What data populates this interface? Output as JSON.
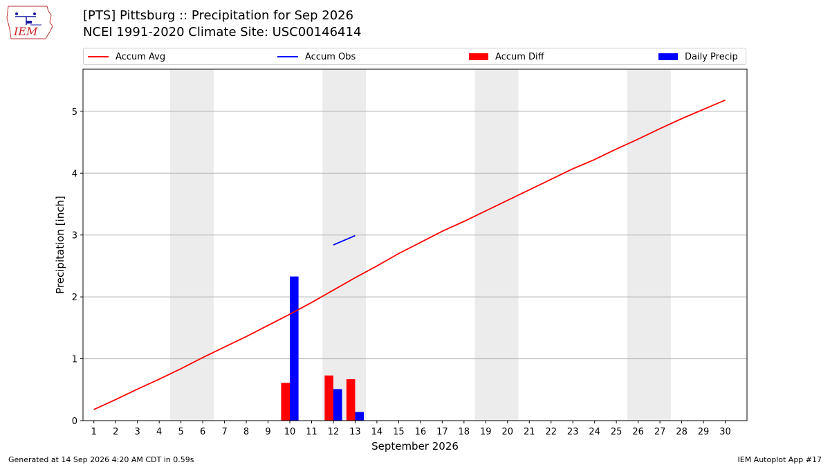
{
  "header": {
    "title_line1": "[PTS] Pittsburg :: Precipitation for Sep 2026",
    "title_line2": "NCEI 1991-2020 Climate Site: USC00146414",
    "logo_text": "IEM"
  },
  "legend": {
    "items": [
      {
        "label": "Accum Avg",
        "kind": "line",
        "color": "#ff0000"
      },
      {
        "label": "Accum Obs",
        "kind": "line",
        "color": "#0000ff"
      },
      {
        "label": "Accum Diff",
        "kind": "patch",
        "color": "#ff0000"
      },
      {
        "label": "Daily Precip",
        "kind": "patch",
        "color": "#0000ff"
      }
    ]
  },
  "footer": {
    "left": "Generated at 14 Sep 2026 4:20 AM CDT in 0.59s",
    "right": "IEM Autoplot App #17"
  },
  "chart_data": {
    "type": "bar",
    "title": "[PTS] Pittsburg :: Precipitation for Sep 2026",
    "subtitle": "NCEI 1991-2020 Climate Site: USC00146414",
    "xlabel": "September 2026",
    "ylabel": "Precipitation [inch]",
    "xlim": [
      0.5,
      31.0
    ],
    "ylim": [
      0,
      5.68
    ],
    "x_ticks": [
      1,
      2,
      3,
      4,
      5,
      6,
      7,
      8,
      9,
      10,
      11,
      12,
      13,
      14,
      15,
      16,
      17,
      18,
      19,
      20,
      21,
      22,
      23,
      24,
      25,
      26,
      27,
      28,
      29,
      30
    ],
    "y_ticks": [
      0,
      1,
      2,
      3,
      4,
      5
    ],
    "grid": "horizontal",
    "legend_position": "top",
    "weekend_shading": [
      [
        4.5,
        6.5
      ],
      [
        11.5,
        13.5
      ],
      [
        18.5,
        20.5
      ],
      [
        25.5,
        27.5
      ]
    ],
    "series": [
      {
        "name": "Accum Avg",
        "kind": "line",
        "color": "#ff0000",
        "x": [
          1,
          2,
          3,
          4,
          5,
          6,
          7,
          8,
          9,
          10,
          11,
          12,
          13,
          14,
          15,
          16,
          17,
          18,
          19,
          20,
          21,
          22,
          23,
          24,
          25,
          26,
          27,
          28,
          29,
          30
        ],
        "values": [
          0.18,
          0.34,
          0.51,
          0.67,
          0.84,
          1.02,
          1.19,
          1.36,
          1.54,
          1.72,
          1.91,
          2.11,
          2.31,
          2.5,
          2.7,
          2.88,
          3.06,
          3.22,
          3.39,
          3.56,
          3.73,
          3.9,
          4.07,
          4.22,
          4.39,
          4.55,
          4.72,
          4.88,
          5.03,
          5.18
        ]
      },
      {
        "name": "Accum Obs",
        "kind": "line",
        "color": "#0000ff",
        "x": [
          12,
          13
        ],
        "values": [
          2.84,
          2.99
        ]
      },
      {
        "name": "Accum Diff",
        "kind": "bar",
        "color": "#ff0000",
        "offset": -0.2,
        "x": [
          10,
          12,
          13
        ],
        "values": [
          0.61,
          0.73,
          0.67
        ]
      },
      {
        "name": "Daily Precip",
        "kind": "bar",
        "color": "#0000ff",
        "offset": 0.2,
        "x": [
          10,
          12,
          13
        ],
        "values": [
          2.33,
          0.51,
          0.14
        ]
      }
    ]
  }
}
